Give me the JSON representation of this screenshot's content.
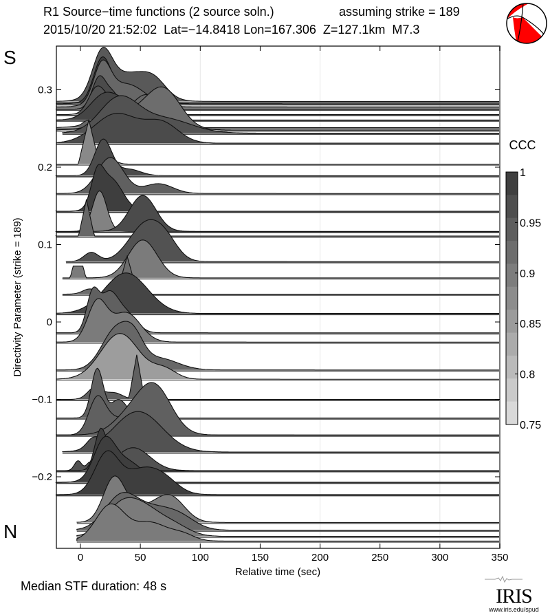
{
  "header": {
    "title": "R1 Source−time functions (2 source soln.)",
    "strike_text": "assuming strike = 189",
    "event_line": "2015/10/20 21:52:02  Lat=−14.8418 Lon=167.306  Z=127.1km  M7.3"
  },
  "labels": {
    "south": "S",
    "north": "N",
    "median": "Median STF duration: 48 s",
    "logo_word": "IRIS",
    "logo_url": "www.iris.edu/spud"
  },
  "beachball": {
    "fill_color": "#ff0000",
    "edge_color": "#000000"
  },
  "chart_data": {
    "type": "area",
    "title": "R1 Source-time functions (2 source soln.)",
    "xlabel": "Relative time (sec)",
    "ylabel": "Directivity Parameter (strike = 189)",
    "xlim": [
      -20,
      350
    ],
    "ylim": [
      -0.295,
      0.345
    ],
    "xticks": [
      0,
      50,
      100,
      150,
      200,
      250,
      300,
      350
    ],
    "xtick_labels": [
      "0",
      "50",
      "100",
      "150",
      "200",
      "250",
      "300",
      "350"
    ],
    "yticks": [
      0.3,
      0.2,
      0.1,
      0,
      -0.1,
      -0.2
    ],
    "ytick_labels": [
      "0.3",
      "0.2",
      "0.1",
      "0",
      "−0.1",
      "−0.2"
    ],
    "grid": "vertical-faint",
    "colorbar": {
      "label": "CCC",
      "range": [
        0.75,
        1
      ],
      "ticks": [
        1,
        0.95,
        0.9,
        0.85,
        0.8,
        0.75
      ],
      "tick_labels": [
        "1",
        "0.95",
        "0.9",
        "0.85",
        "0.8",
        "0.75"
      ],
      "steps": 11
    },
    "traces": [
      {
        "d": 0.285,
        "start": -20,
        "ccc": 0.95,
        "comps": [
          [
            18,
            8,
            0.62
          ],
          [
            40,
            18,
            0.42
          ],
          [
            62,
            10,
            0.2
          ]
        ]
      },
      {
        "d": 0.282,
        "start": -20,
        "ccc": 0.99,
        "comps": [
          [
            18,
            7,
            0.6
          ],
          [
            38,
            16,
            0.25
          ]
        ]
      },
      {
        "d": 0.278,
        "start": -20,
        "ccc": 0.93,
        "comps": [
          [
            18,
            7,
            0.55
          ],
          [
            38,
            16,
            0.35
          ]
        ]
      },
      {
        "d": 0.275,
        "start": -20,
        "ccc": 0.97,
        "comps": [
          [
            16,
            6,
            0.5
          ],
          [
            28,
            5,
            0.2
          ]
        ]
      },
      {
        "d": 0.268,
        "start": -20,
        "ccc": 0.96,
        "comps": [
          [
            14,
            7,
            0.42
          ],
          [
            26,
            6,
            0.12
          ]
        ]
      },
      {
        "d": 0.261,
        "start": -20,
        "ccc": 0.98,
        "comps": [
          [
            20,
            12,
            0.38
          ],
          [
            42,
            12,
            0.2
          ]
        ]
      },
      {
        "d": 0.251,
        "start": -20,
        "ccc": 0.93,
        "comps": [
          [
            5,
            3,
            0.05
          ],
          [
            56,
            12,
            0.45
          ],
          [
            30,
            18,
            0.15
          ]
        ]
      },
      {
        "d": 0.248,
        "start": -20,
        "ccc": 0.92,
        "comps": [
          [
            70,
            14,
            0.52
          ],
          [
            45,
            22,
            0.25
          ]
        ]
      },
      {
        "d": 0.244,
        "start": -15,
        "ccc": 0.96,
        "comps": [
          [
            32,
            16,
            0.52
          ],
          [
            70,
            22,
            0.22
          ]
        ]
      },
      {
        "d": 0.231,
        "start": -20,
        "ccc": 0.97,
        "comps": [
          [
            30,
            18,
            0.45
          ],
          [
            68,
            14,
            0.3
          ]
        ]
      },
      {
        "d": 0.204,
        "start": -20,
        "ccc": 0.88,
        "comps": [
          [
            7,
            4,
            0.68,
            "tri"
          ],
          [
            28,
            4,
            0.04
          ]
        ]
      },
      {
        "d": 0.189,
        "start": -20,
        "ccc": 0.97,
        "comps": [
          [
            19,
            7,
            0.55
          ],
          [
            40,
            10,
            0.1
          ]
        ]
      },
      {
        "d": 0.166,
        "start": -20,
        "ccc": 0.94,
        "comps": [
          [
            25,
            11,
            0.55
          ],
          [
            65,
            12,
            0.15
          ]
        ]
      },
      {
        "d": 0.143,
        "start": -20,
        "ccc": 0.99,
        "comps": [
          [
            14,
            5,
            0.42
          ],
          [
            25,
            10,
            0.5
          ]
        ]
      },
      {
        "d": 0.117,
        "start": -20,
        "ccc": 0.89,
        "comps": [
          [
            16,
            6,
            0.62
          ]
        ]
      },
      {
        "d": 0.117,
        "start": -20,
        "ccc": 0.97,
        "comps": [
          [
            52,
            11,
            0.55
          ]
        ]
      },
      {
        "d": 0.111,
        "start": -20,
        "ccc": 0.93,
        "comps": [
          [
            5,
            3,
            0.56,
            "tri"
          ]
        ]
      },
      {
        "d": 0.078,
        "start": -12,
        "ccc": 0.96,
        "comps": [
          [
            9,
            6,
            0.14
          ],
          [
            55,
            14,
            0.58
          ],
          [
            72,
            10,
            0.2
          ]
        ]
      },
      {
        "d": 0.057,
        "start": -15,
        "ccc": 0.9,
        "comps": [
          [
            -2,
            3,
            0.18,
            "flat"
          ],
          [
            52,
            12,
            0.58
          ]
        ]
      },
      {
        "d": 0.036,
        "start": -15,
        "ccc": 0.92,
        "comps": [
          [
            8,
            6,
            0.08
          ],
          [
            39,
            4,
            0.58,
            "tri"
          ]
        ]
      },
      {
        "d": 0.011,
        "start": -20,
        "ccc": 0.98,
        "comps": [
          [
            38,
            18,
            0.62
          ]
        ]
      },
      {
        "d": -0.014,
        "start": -20,
        "ccc": 0.94,
        "comps": [
          [
            10,
            5,
            0.55
          ],
          [
            24,
            8,
            0.6
          ],
          [
            40,
            8,
            0.25
          ]
        ]
      },
      {
        "d": -0.026,
        "start": -20,
        "ccc": 0.9,
        "comps": [
          [
            14,
            8,
            0.6
          ],
          [
            38,
            12,
            0.45
          ]
        ]
      },
      {
        "d": -0.062,
        "start": -20,
        "ccc": 0.93,
        "comps": [
          [
            30,
            12,
            0.62
          ],
          [
            65,
            16,
            0.18
          ],
          [
            45,
            8,
            0.3
          ]
        ]
      },
      {
        "d": -0.074,
        "start": -20,
        "ccc": 0.85,
        "comps": [
          [
            33,
            16,
            0.7
          ],
          [
            70,
            10,
            0.15
          ]
        ]
      },
      {
        "d": -0.1,
        "start": -20,
        "ccc": 0.94,
        "comps": [
          [
            12,
            6,
            0.18
          ],
          [
            28,
            7,
            0.1
          ],
          [
            47,
            3,
            0.68,
            "tri"
          ]
        ]
      },
      {
        "d": -0.124,
        "start": -20,
        "ccc": 0.94,
        "comps": [
          [
            14,
            5,
            0.75
          ],
          [
            32,
            7,
            0.28
          ]
        ]
      },
      {
        "d": -0.146,
        "start": -20,
        "ccc": 0.94,
        "comps": [
          [
            14,
            7,
            0.55
          ],
          [
            32,
            10,
            0.25
          ]
        ]
      },
      {
        "d": -0.146,
        "start": -20,
        "ccc": 0.94,
        "comps": [
          [
            62,
            14,
            0.72
          ],
          [
            40,
            14,
            0.25
          ]
        ]
      },
      {
        "d": -0.168,
        "start": -15,
        "ccc": 0.96,
        "comps": [
          [
            48,
            20,
            0.62
          ],
          [
            10,
            5,
            0.12
          ]
        ]
      },
      {
        "d": -0.192,
        "start": -20,
        "ccc": 0.96,
        "comps": [
          [
            -2,
            3,
            0.15
          ],
          [
            8,
            3,
            0.12
          ],
          [
            44,
            14,
            0.35
          ]
        ]
      },
      {
        "d": -0.192,
        "start": -20,
        "ccc": 0.99,
        "comps": [
          [
            17,
            5,
            0.62
          ],
          [
            28,
            6,
            0.15
          ]
        ]
      },
      {
        "d": -0.207,
        "start": -20,
        "ccc": 0.99,
        "comps": [
          [
            20,
            9,
            0.62
          ],
          [
            40,
            12,
            0.3
          ]
        ]
      },
      {
        "d": -0.223,
        "start": -20,
        "ccc": 0.99,
        "comps": [
          [
            22,
            10,
            0.62
          ],
          [
            50,
            14,
            0.35
          ],
          [
            70,
            12,
            0.2
          ]
        ]
      },
      {
        "d": -0.259,
        "start": -3,
        "ccc": 0.9,
        "comps": [
          [
            28,
            9,
            0.65
          ],
          [
            75,
            12,
            0.38
          ],
          [
            50,
            14,
            0.2
          ]
        ]
      },
      {
        "d": -0.269,
        "start": -3,
        "ccc": 0.93,
        "comps": [
          [
            35,
            14,
            0.55
          ],
          [
            80,
            14,
            0.25
          ],
          [
            60,
            12,
            0.2
          ]
        ]
      },
      {
        "d": -0.277,
        "start": -3,
        "ccc": 0.9,
        "comps": [
          [
            35,
            14,
            0.5
          ],
          [
            75,
            14,
            0.2
          ],
          [
            55,
            12,
            0.25
          ]
        ]
      },
      {
        "d": -0.283,
        "start": -3,
        "ccc": 0.9,
        "comps": [
          [
            25,
            12,
            0.55
          ],
          [
            58,
            14,
            0.28
          ],
          [
            85,
            10,
            0.1
          ]
        ]
      }
    ]
  }
}
